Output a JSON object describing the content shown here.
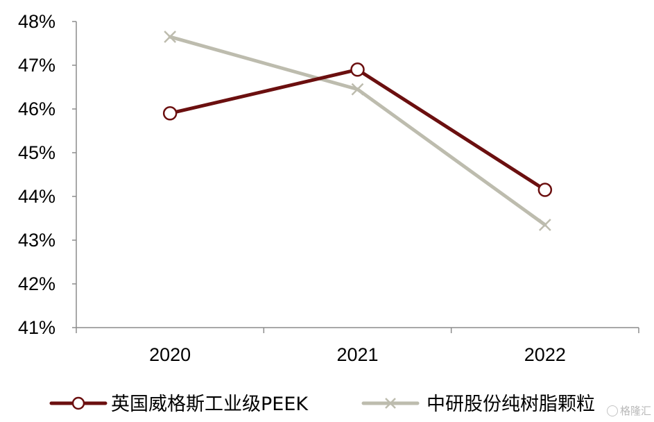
{
  "chart_data": {
    "type": "line",
    "categories": [
      "2020",
      "2021",
      "2022"
    ],
    "ylim": [
      41,
      48
    ],
    "yticks": [
      "41%",
      "42%",
      "43%",
      "44%",
      "45%",
      "46%",
      "47%",
      "48%"
    ],
    "grid": false,
    "legend_position": "bottom",
    "series": [
      {
        "name": "英国威格斯工业级PEEK",
        "values": [
          45.9,
          46.9,
          44.15
        ],
        "color": "#6B0F0F",
        "marker": "circle"
      },
      {
        "name": "中研股份纯树脂颗粒",
        "values": [
          47.65,
          46.45,
          43.35
        ],
        "color": "#BDBCAE",
        "marker": "x"
      }
    ]
  },
  "watermark": {
    "text": "格隆汇"
  }
}
